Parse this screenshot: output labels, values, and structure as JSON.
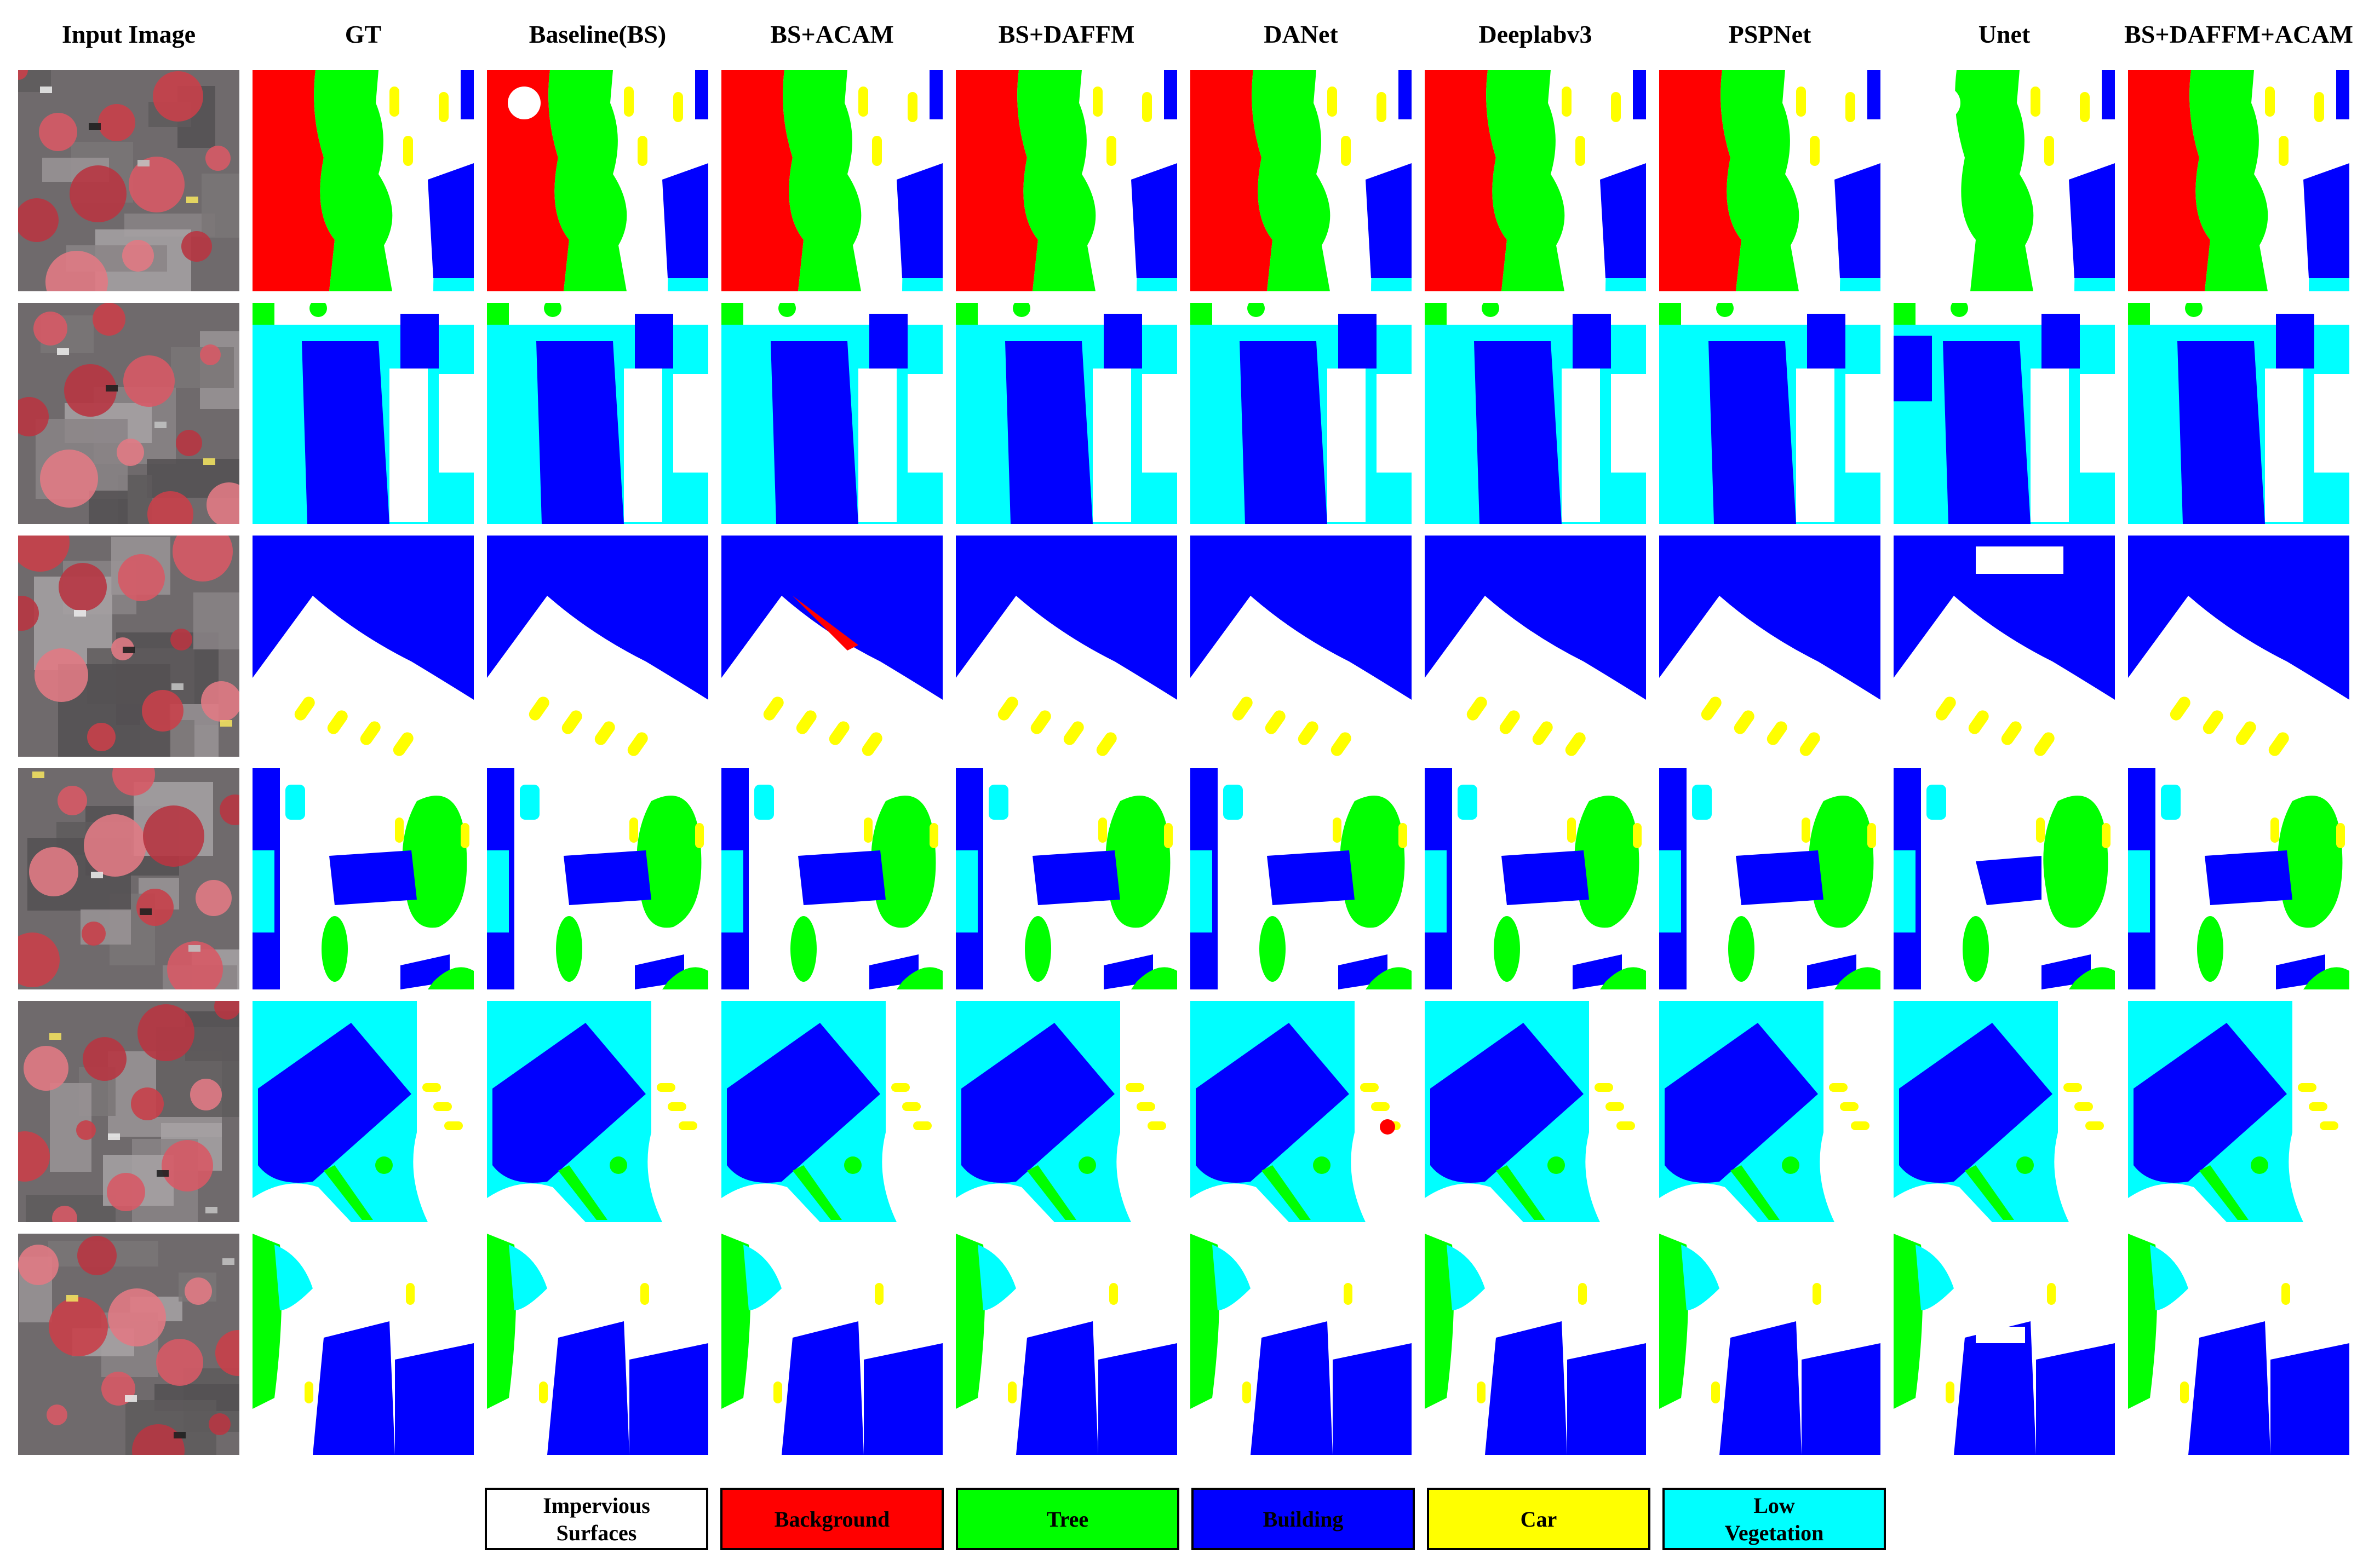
{
  "columns": [
    "Input Image",
    "GT",
    "Baseline(BS)",
    "BS+ACAM",
    "BS+DAFFM",
    "DANet",
    "Deeplabv3",
    "PSPNet",
    "Unet",
    "BS+DAFFM+ACAM"
  ],
  "rows": 6,
  "classes": {
    "impervious": {
      "color": "#ffffff"
    },
    "background": {
      "color": "#ff0000"
    },
    "tree": {
      "color": "#00ff00"
    },
    "building": {
      "color": "#0000ff"
    },
    "car": {
      "color": "#ffff00"
    },
    "lowveg": {
      "color": "#00ffff"
    }
  },
  "legend": [
    {
      "key": "impervious",
      "lines": [
        "Impervious",
        "Surfaces"
      ],
      "color": "#ffffff"
    },
    {
      "key": "background",
      "lines": [
        "Background"
      ],
      "color": "#ff0000"
    },
    {
      "key": "tree",
      "lines": [
        "Tree"
      ],
      "color": "#00ff00"
    },
    {
      "key": "building",
      "lines": [
        "Building"
      ],
      "color": "#0000ff"
    },
    {
      "key": "car",
      "lines": [
        "Car"
      ],
      "color": "#ffff00"
    },
    {
      "key": "lowveg",
      "lines": [
        "Low",
        "Vegetation"
      ],
      "color": "#00ffff"
    }
  ]
}
